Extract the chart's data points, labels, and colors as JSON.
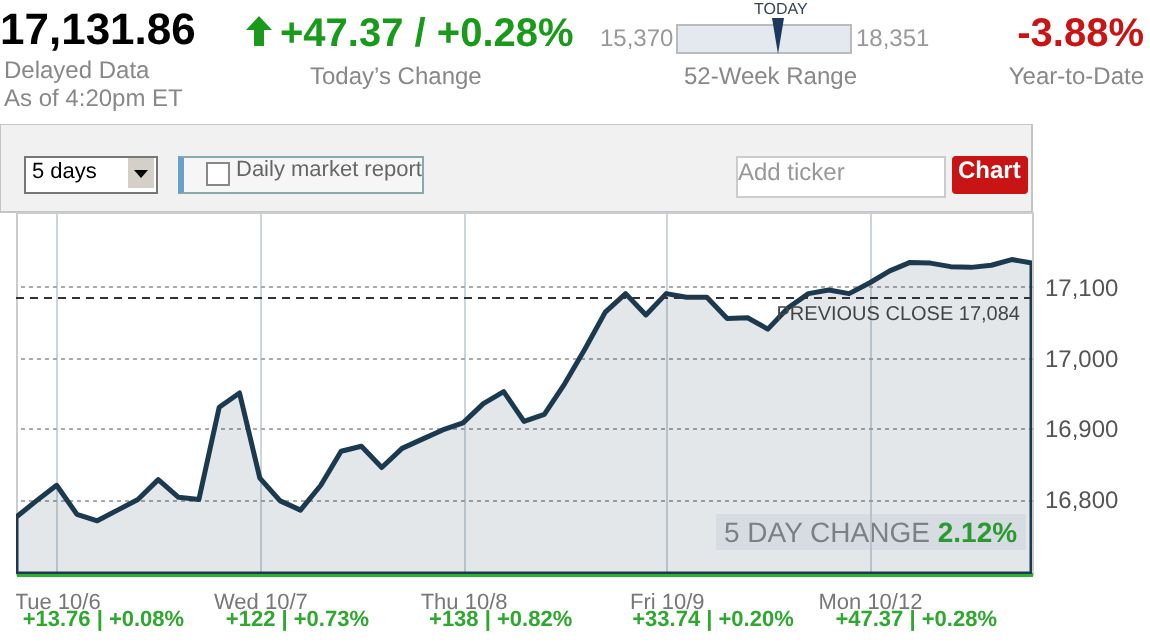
{
  "chart_data": {
    "type": "area",
    "grid": true,
    "categories": [
      null,
      null,
      "Tue 10/6",
      null,
      null,
      null,
      null,
      null,
      null,
      null,
      null,
      null,
      "Wed 10/7",
      null,
      null,
      null,
      null,
      null,
      null,
      null,
      null,
      null,
      "Thu 10/8",
      null,
      null,
      null,
      null,
      null,
      null,
      null,
      null,
      null,
      "Fri 10/9",
      null,
      null,
      null,
      null,
      null,
      null,
      null,
      null,
      null,
      "Mon 10/12",
      null,
      null,
      null,
      null,
      null,
      null,
      null,
      null
    ],
    "series": [
      {
        "color": "#1c3a4f",
        "values": [
          16775,
          16798,
          16820,
          16779,
          16770,
          16785,
          16800,
          16828,
          16803,
          16800,
          16930,
          16950,
          16830,
          16798,
          16785,
          16820,
          16868,
          16875,
          16845,
          16872,
          16885,
          16898,
          16908,
          16935,
          16952,
          16910,
          16920,
          16963,
          17012,
          17064,
          17090,
          17060,
          17090,
          17085,
          17085,
          17055,
          17056,
          17040,
          17070,
          17090,
          17095,
          17090,
          17105,
          17122,
          17134,
          17133,
          17128,
          17127,
          17130,
          17138,
          17133
        ]
      }
    ],
    "ylim": [
      16695,
      17205
    ],
    "yticks": [
      {
        "value": 16800,
        "label": "16,800"
      },
      {
        "value": 16900,
        "label": "16,900"
      },
      {
        "value": 17000,
        "label": "17,000"
      },
      {
        "value": 17100,
        "label": "17,100"
      }
    ],
    "ref_lines": [
      {
        "axis": "y",
        "value": 17084,
        "label": "PREVIOUS CLOSE 17,084",
        "line_style": "dashed",
        "color": "#333333"
      }
    ],
    "annotations": [
      "17,131.86",
      "Delayed Data",
      "As of 4:20pm ET",
      "+47.37 / +0.28%",
      "Today’s Change",
      "15,370",
      "TODAY",
      "18,351",
      "52-Week Range",
      "-3.88%",
      "Year-to-Date",
      "5 days",
      "Daily market report",
      "Add ticker",
      "Chart",
      "5 DAY CHANGE 2.12%",
      "+13.76 | +0.08%",
      "+122 | +0.73%",
      "+138 | +0.82%",
      "+33.74 | +0.20%",
      "+47.37 | +0.28%"
    ]
  }
}
